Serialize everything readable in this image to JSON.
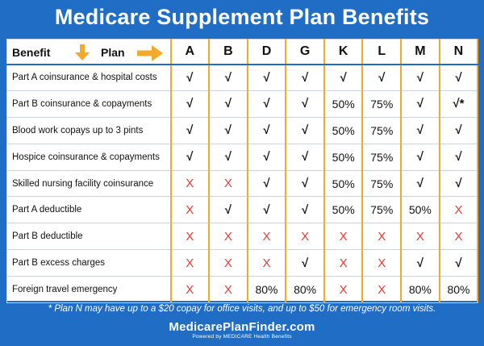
{
  "title": "Medicare Supplement Plan Benefits",
  "header": {
    "benefit_label": "Benefit",
    "plan_label": "Plan",
    "plans": [
      "A",
      "B",
      "D",
      "G",
      "K",
      "L",
      "M",
      "N"
    ]
  },
  "rows": [
    {
      "benefit": "Part A coinsurance & hospital costs",
      "values": [
        "√",
        "√",
        "√",
        "√",
        "√",
        "√",
        "√",
        "√"
      ]
    },
    {
      "benefit": "Part B coinsurance & copayments",
      "values": [
        "√",
        "√",
        "√",
        "√",
        "50%",
        "75%",
        "√",
        "√*"
      ]
    },
    {
      "benefit": "Blood work copays up to 3 pints",
      "values": [
        "√",
        "√",
        "√",
        "√",
        "50%",
        "75%",
        "√",
        "√"
      ]
    },
    {
      "benefit": "Hospice coinsurance & copayments",
      "values": [
        "√",
        "√",
        "√",
        "√",
        "50%",
        "75%",
        "√",
        "√"
      ]
    },
    {
      "benefit": "Skilled nursing facility coinsurance",
      "values": [
        "X",
        "X",
        "√",
        "√",
        "50%",
        "75%",
        "√",
        "√"
      ]
    },
    {
      "benefit": "Part A deductible",
      "values": [
        "X",
        "√",
        "√",
        "√",
        "50%",
        "75%",
        "50%",
        "X"
      ]
    },
    {
      "benefit": "Part B deductible",
      "values": [
        "X",
        "X",
        "X",
        "X",
        "X",
        "X",
        "X",
        "X"
      ]
    },
    {
      "benefit": "Part B excess charges",
      "values": [
        "X",
        "X",
        "X",
        "√",
        "X",
        "X",
        "√",
        "√"
      ]
    },
    {
      "benefit": "Foreign travel emergency",
      "values": [
        "X",
        "X",
        "80%",
        "80%",
        "X",
        "X",
        "80%",
        "80%"
      ]
    }
  ],
  "footnote": "* Plan N may have up to a $20 copay for office visits, and up to $50 for emergency room visits.",
  "logo": {
    "main": "MedicarePlanFinder.com",
    "sub": "Powered by MEDICARE Health Benefits"
  },
  "colors": {
    "background": "#1f6dc4",
    "accent_orange": "#f3a92a",
    "x_red": "#e23b34"
  },
  "icons": [
    "arrow-down-icon",
    "arrow-right-icon"
  ]
}
